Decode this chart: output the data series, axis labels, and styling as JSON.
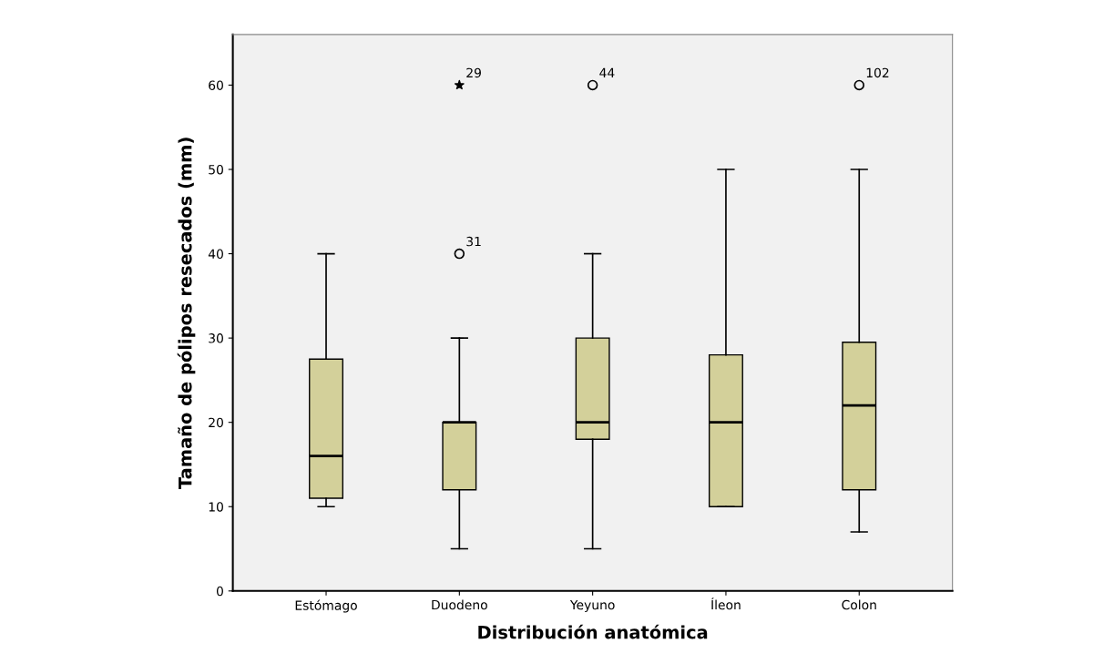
{
  "chart_data": {
    "type": "box",
    "xlabel": "Distribución anatómica",
    "ylabel": "Tamaño de pólipos resecados (mm)",
    "categories": [
      "Estómago",
      "Duodeno",
      "Yeyuno",
      "Íleon",
      "Colon"
    ],
    "color": "#d3d09a",
    "boxes": [
      {
        "low": 10,
        "q1": 11,
        "median": 16,
        "q3": 27.5,
        "high": 40
      },
      {
        "low": 5,
        "q1": 12,
        "median": 20,
        "q3": 20,
        "high": 30
      },
      {
        "low": 5,
        "q1": 18,
        "median": 20,
        "q3": 30,
        "high": 40
      },
      {
        "low": 10,
        "q1": 10,
        "median": 20,
        "q3": 28,
        "high": 50
      },
      {
        "low": 7,
        "q1": 12,
        "median": 22,
        "q3": 29.5,
        "high": 50
      }
    ],
    "series": [
      {
        "type": "scatter",
        "x": [
          "Duodeno",
          "Yeyuno",
          "Colon"
        ],
        "values": [
          40,
          60,
          60
        ],
        "marker": "circle",
        "color": "#000000"
      },
      {
        "type": "scatter",
        "x": [
          "Duodeno"
        ],
        "values": [
          60
        ],
        "marker": "star",
        "color": "#000000"
      }
    ],
    "annotations": [
      {
        "text": "29",
        "x": "Duodeno",
        "y": 60
      },
      {
        "text": "31",
        "x": "Duodeno",
        "y": 40
      },
      {
        "text": "44",
        "x": "Yeyuno",
        "y": 60
      },
      {
        "text": "102",
        "x": "Colon",
        "y": 60
      }
    ],
    "ylim": [
      0,
      66
    ],
    "yticks": [
      0,
      10,
      20,
      30,
      40,
      50,
      60
    ],
    "grid": false
  }
}
